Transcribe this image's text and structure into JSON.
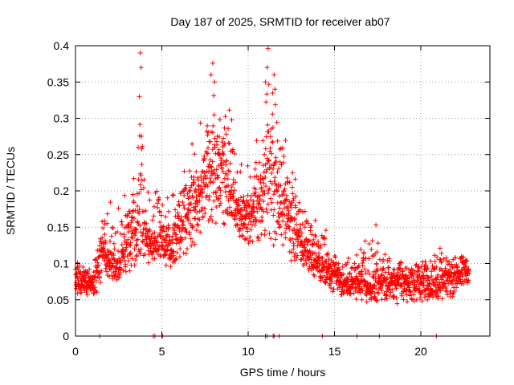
{
  "chart_data": {
    "type": "scatter",
    "title": "Day 187 of 2025, SRMTID for receiver ab07",
    "xlabel": "GPS time / hours",
    "ylabel": "SRMTID / TECUs",
    "xlim": [
      0,
      24
    ],
    "ylim": [
      0,
      0.4
    ],
    "xticks": [
      0,
      5,
      10,
      15,
      20
    ],
    "xtick_labels": [
      "0",
      "5",
      "10",
      "15",
      "20"
    ],
    "yticks": [
      0,
      0.05,
      0.1,
      0.15,
      0.2,
      0.25,
      0.3,
      0.35,
      0.4
    ],
    "ytick_labels": [
      "0",
      "0.05",
      "0.1",
      "0.15",
      "0.2",
      "0.25",
      "0.3",
      "0.35",
      "0.4"
    ],
    "grid": true,
    "marker": "+",
    "color": "#ff0000",
    "series": [
      {
        "name": "SRMTID",
        "envelope_hours": [
          0,
          0.5,
          1,
          1.5,
          2,
          2.5,
          3,
          3.5,
          3.8,
          4,
          4.5,
          5,
          5.5,
          6,
          6.5,
          7,
          7.5,
          8,
          8.5,
          9,
          9.5,
          10,
          10.5,
          11,
          11.2,
          11.5,
          12,
          12.5,
          13,
          13.5,
          14,
          14.5,
          15,
          15.5,
          16,
          16.5,
          17,
          17.5,
          18,
          18.5,
          19,
          19.5,
          20,
          20.5,
          21,
          21.5,
          22,
          22.5,
          22.8
        ],
        "envelope_low": [
          0.05,
          0.05,
          0.05,
          0.06,
          0.07,
          0.07,
          0.08,
          0.08,
          0.09,
          0.09,
          0.1,
          0.09,
          0.08,
          0.09,
          0.1,
          0.12,
          0.13,
          0.13,
          0.13,
          0.13,
          0.12,
          0.12,
          0.12,
          0.11,
          0.11,
          0.11,
          0.1,
          0.09,
          0.09,
          0.08,
          0.07,
          0.06,
          0.05,
          0.05,
          0.05,
          0.04,
          0.04,
          0.04,
          0.04,
          0.04,
          0.04,
          0.04,
          0.04,
          0.04,
          0.04,
          0.04,
          0.05,
          0.06,
          0.06
        ],
        "envelope_high": [
          0.1,
          0.11,
          0.1,
          0.18,
          0.2,
          0.18,
          0.2,
          0.27,
          0.39,
          0.25,
          0.2,
          0.22,
          0.22,
          0.24,
          0.26,
          0.29,
          0.31,
          0.37,
          0.35,
          0.31,
          0.24,
          0.25,
          0.27,
          0.37,
          0.4,
          0.35,
          0.3,
          0.23,
          0.2,
          0.17,
          0.16,
          0.15,
          0.12,
          0.11,
          0.11,
          0.12,
          0.15,
          0.13,
          0.12,
          0.12,
          0.11,
          0.11,
          0.11,
          0.12,
          0.13,
          0.11,
          0.12,
          0.12,
          0.1
        ],
        "typical": [
          0.08,
          0.075,
          0.07,
          0.11,
          0.1,
          0.09,
          0.13,
          0.14,
          0.17,
          0.14,
          0.12,
          0.13,
          0.12,
          0.15,
          0.16,
          0.18,
          0.2,
          0.22,
          0.21,
          0.19,
          0.16,
          0.16,
          0.17,
          0.2,
          0.22,
          0.19,
          0.16,
          0.14,
          0.13,
          0.11,
          0.1,
          0.09,
          0.08,
          0.07,
          0.07,
          0.07,
          0.06,
          0.07,
          0.07,
          0.07,
          0.07,
          0.07,
          0.07,
          0.07,
          0.07,
          0.07,
          0.08,
          0.09,
          0.085
        ],
        "spikes": [
          {
            "x": 3.75,
            "y": 0.39
          },
          {
            "x": 3.8,
            "y": 0.37
          },
          {
            "x": 3.7,
            "y": 0.33
          },
          {
            "x": 7.95,
            "y": 0.376
          },
          {
            "x": 7.85,
            "y": 0.36
          },
          {
            "x": 8.05,
            "y": 0.35
          },
          {
            "x": 11.15,
            "y": 0.396
          },
          {
            "x": 11.1,
            "y": 0.37
          },
          {
            "x": 11.5,
            "y": 0.36
          },
          {
            "x": 11.0,
            "y": 0.35
          },
          {
            "x": 11.55,
            "y": 0.34
          },
          {
            "x": 17.4,
            "y": 0.153
          }
        ],
        "zero_hours": [
          1.4,
          4.5,
          4.6,
          5.0,
          5.05,
          11.0,
          11.1,
          11.45,
          11.5,
          11.8,
          14.3,
          16.3,
          17.6,
          20.9
        ]
      }
    ]
  }
}
